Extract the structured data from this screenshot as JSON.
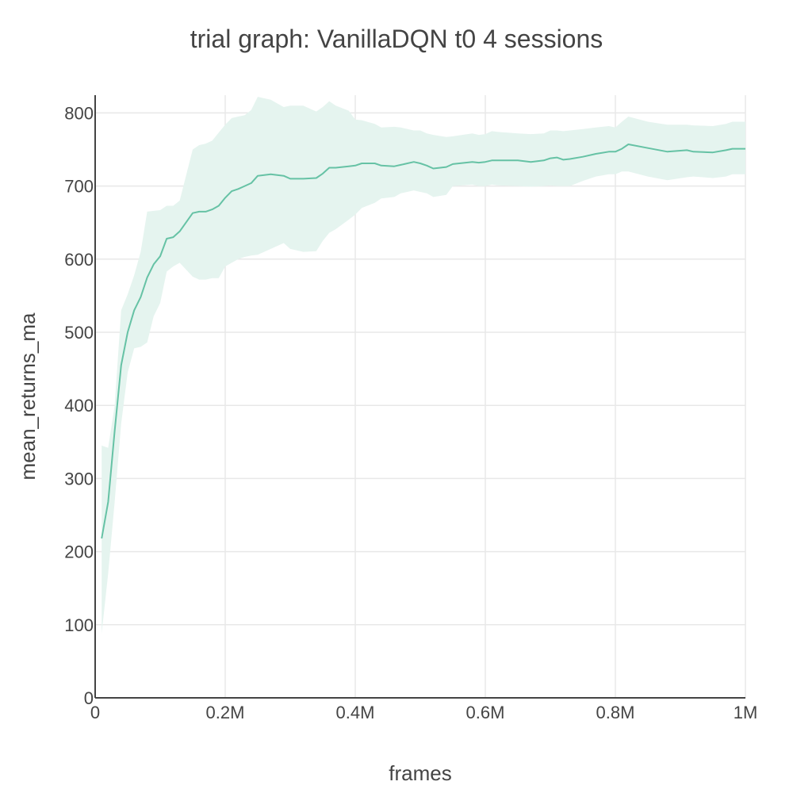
{
  "chart_data": {
    "type": "line",
    "title": "trial graph: VanillaDQN t0 4 sessions",
    "xlabel": "frames",
    "ylabel": "mean_returns_ma",
    "xlim": [
      0,
      1000000
    ],
    "ylim": [
      0,
      820
    ],
    "x_ticks": [
      {
        "value": 0,
        "label": "0"
      },
      {
        "value": 200000,
        "label": "0.2M"
      },
      {
        "value": 400000,
        "label": "0.4M"
      },
      {
        "value": 600000,
        "label": "0.6M"
      },
      {
        "value": 800000,
        "label": "0.8M"
      },
      {
        "value": 1000000,
        "label": "1M"
      }
    ],
    "y_ticks": [
      {
        "value": 0,
        "label": "0"
      },
      {
        "value": 100,
        "label": "100"
      },
      {
        "value": 200,
        "label": "200"
      },
      {
        "value": 300,
        "label": "300"
      },
      {
        "value": 400,
        "label": "400"
      },
      {
        "value": 500,
        "label": "500"
      },
      {
        "value": 600,
        "label": "600"
      },
      {
        "value": 700,
        "label": "700"
      },
      {
        "value": 800,
        "label": "800"
      }
    ],
    "grid": true,
    "legend": "none",
    "colors": {
      "line": "#66c2a5",
      "band": "#e5f4ef",
      "axis": "#444444",
      "grid": "#e8e8e8"
    },
    "series": [
      {
        "x": [
          10000,
          20000,
          30000,
          40000,
          50000,
          60000,
          70000,
          80000,
          90000,
          100000,
          110000,
          120000,
          130000,
          150000,
          160000,
          170000,
          180000,
          190000,
          200000,
          210000,
          220000,
          230000,
          240000,
          250000,
          270000,
          290000,
          300000,
          320000,
          340000,
          350000,
          360000,
          370000,
          390000,
          400000,
          410000,
          430000,
          440000,
          460000,
          470000,
          490000,
          500000,
          510000,
          520000,
          540000,
          550000,
          580000,
          590000,
          600000,
          610000,
          620000,
          650000,
          670000,
          690000,
          700000,
          710000,
          720000,
          730000,
          750000,
          770000,
          790000,
          800000,
          810000,
          820000,
          850000,
          880000,
          910000,
          920000,
          950000,
          970000,
          980000,
          1000000
        ],
        "y": [
          218,
          268,
          365,
          455,
          500,
          530,
          548,
          575,
          593,
          604,
          628,
          630,
          638,
          663,
          665,
          665,
          668,
          673,
          684,
          693,
          696,
          700,
          704,
          714,
          716,
          714,
          710,
          710,
          711,
          717,
          725,
          725,
          727,
          728,
          731,
          731,
          728,
          727,
          729,
          733,
          731,
          728,
          724,
          726,
          730,
          733,
          732,
          733,
          735,
          735,
          735,
          733,
          735,
          738,
          739,
          736,
          737,
          740,
          744,
          747,
          747,
          751,
          757,
          752,
          747,
          749,
          747,
          746,
          749,
          751,
          751
        ],
        "upper": [
          345,
          342,
          400,
          530,
          552,
          578,
          610,
          665,
          666,
          667,
          673,
          673,
          680,
          750,
          756,
          758,
          762,
          773,
          784,
          793,
          795,
          797,
          804,
          822,
          818,
          808,
          810,
          810,
          802,
          808,
          816,
          810,
          803,
          791,
          790,
          785,
          780,
          781,
          780,
          776,
          776,
          772,
          770,
          767,
          768,
          772,
          770,
          771,
          775,
          774,
          772,
          771,
          772,
          776,
          776,
          775,
          776,
          778,
          780,
          782,
          780,
          788,
          795,
          788,
          784,
          784,
          783,
          782,
          785,
          788,
          788
        ],
        "lower": [
          88,
          170,
          268,
          375,
          445,
          478,
          480,
          486,
          522,
          540,
          583,
          590,
          595,
          576,
          572,
          572,
          574,
          574,
          590,
          595,
          600,
          603,
          605,
          606,
          614,
          622,
          614,
          610,
          611,
          625,
          636,
          641,
          654,
          661,
          670,
          677,
          683,
          685,
          690,
          694,
          692,
          690,
          685,
          688,
          700,
          702,
          700,
          700,
          702,
          701,
          700,
          699,
          700,
          701,
          700,
          700,
          700,
          707,
          713,
          716,
          716,
          720,
          720,
          713,
          708,
          712,
          713,
          711,
          713,
          716,
          716
        ]
      }
    ]
  }
}
